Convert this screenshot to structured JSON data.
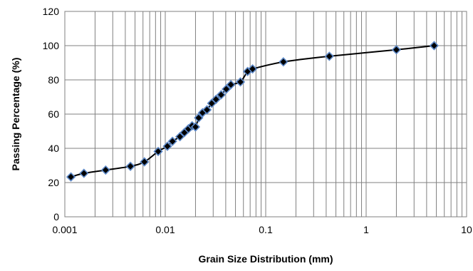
{
  "chart_data": {
    "type": "scatter",
    "title": "",
    "xlabel": "Grain Size Distribution (mm)",
    "ylabel": "Passing Percentage (%)",
    "x_scale": "log",
    "xlim": [
      0.001,
      10
    ],
    "ylim": [
      0,
      120
    ],
    "x_ticks": [
      {
        "value": 0.001,
        "label": "0.001"
      },
      {
        "value": 0.01,
        "label": "0.01"
      },
      {
        "value": 0.1,
        "label": "0.1"
      },
      {
        "value": 1,
        "label": "1"
      },
      {
        "value": 10,
        "label": "10"
      }
    ],
    "y_ticks": [
      {
        "value": 0,
        "label": "0"
      },
      {
        "value": 20,
        "label": "20"
      },
      {
        "value": 40,
        "label": "40"
      },
      {
        "value": 60,
        "label": "60"
      },
      {
        "value": 80,
        "label": "80"
      },
      {
        "value": 100,
        "label": "100"
      },
      {
        "value": 120,
        "label": "120"
      }
    ],
    "grid": "on (major and minor log gridlines)",
    "legend": "none",
    "line_color": "#000000",
    "marker_fill": "#000000",
    "marker_edge": "#5b87c6",
    "x": [
      0.00115,
      0.00155,
      0.00255,
      0.0045,
      0.0062,
      0.0085,
      0.0105,
      0.0118,
      0.014,
      0.0155,
      0.017,
      0.0185,
      0.02,
      0.0215,
      0.0235,
      0.026,
      0.029,
      0.032,
      0.036,
      0.0405,
      0.045,
      0.056,
      0.066,
      0.074,
      0.15,
      0.43,
      2.0,
      4.75
    ],
    "y": [
      23.3,
      25.4,
      27.3,
      29.5,
      32.1,
      38.2,
      41.2,
      44.1,
      46.8,
      49.2,
      51.4,
      53.2,
      52.5,
      57.8,
      60.8,
      62.5,
      66.3,
      68.6,
      71.3,
      74.6,
      77.2,
      78.8,
      84.9,
      86.4,
      90.5,
      93.8,
      97.6,
      100
    ]
  }
}
